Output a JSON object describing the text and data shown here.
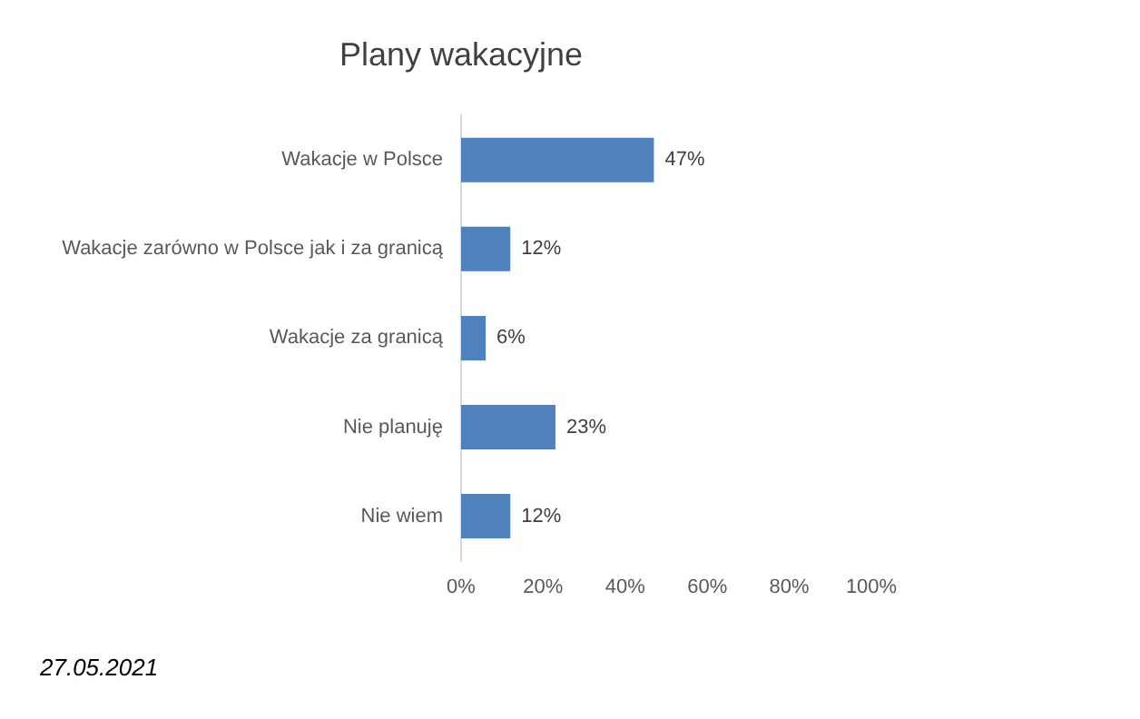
{
  "chart_data": {
    "type": "bar",
    "orientation": "horizontal",
    "title": "Plany wakacyjne",
    "categories": [
      "Wakacje w Polsce",
      "Wakacje zarówno w Polsce jak i za granicą",
      "Wakacje za granicą",
      "Nie planuję",
      "Nie wiem"
    ],
    "values": [
      47,
      12,
      6,
      23,
      12
    ],
    "value_labels": [
      "47%",
      "12%",
      "6%",
      "23%",
      "12%"
    ],
    "color": "#4f81bd",
    "xlim": [
      0,
      100
    ],
    "xticks": [
      {
        "value": 0,
        "label": "0%"
      },
      {
        "value": 20,
        "label": "20%"
      },
      {
        "value": 40,
        "label": "40%"
      },
      {
        "value": 60,
        "label": "60%"
      },
      {
        "value": 80,
        "label": "80%"
      },
      {
        "value": 100,
        "label": "100%"
      }
    ],
    "grid": false,
    "legend": false,
    "annotations": [
      "27.05.2021"
    ]
  }
}
